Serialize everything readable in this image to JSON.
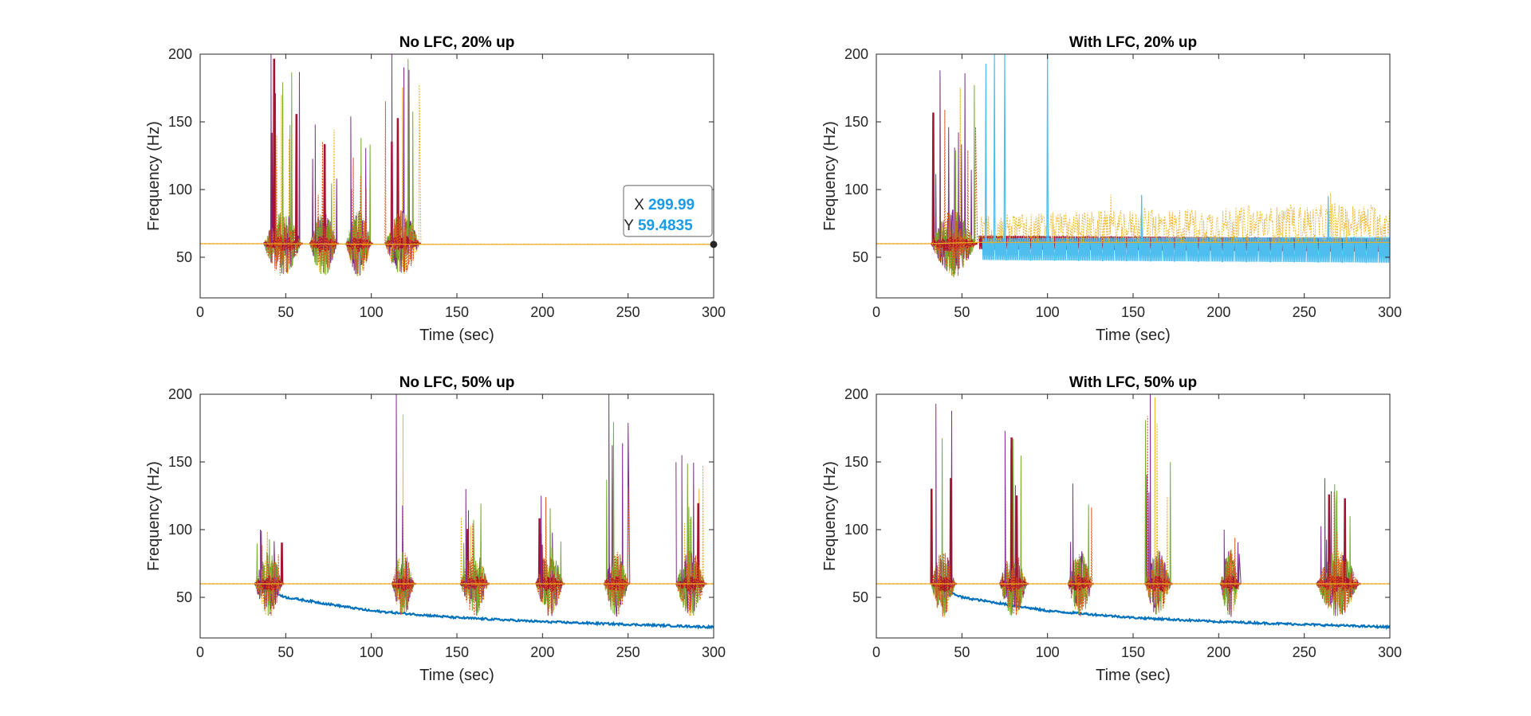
{
  "chart_data": [
    {
      "type": "line",
      "title": "No LFC, 20% up",
      "xlabel": "Time (sec)",
      "ylabel": "Frequency (Hz)",
      "xlim": [
        0,
        300
      ],
      "ylim": [
        20,
        200
      ],
      "xticks": [
        0,
        50,
        100,
        150,
        200,
        250,
        300
      ],
      "yticks": [
        50,
        100,
        150,
        200
      ],
      "grid": false,
      "series_colors": [
        "#0072BD",
        "#D95319",
        "#EDB120",
        "#7E2F8E",
        "#77AC30",
        "#4DBEEE",
        "#A2142F"
      ],
      "bursts": [
        {
          "start": 37,
          "end": 59,
          "peak": 200
        },
        {
          "start": 64,
          "end": 80,
          "peak": 148
        },
        {
          "start": 85,
          "end": 100,
          "peak": 154
        },
        {
          "start": 108,
          "end": 128,
          "peak": 200
        }
      ],
      "baseline": [
        [
          0,
          60
        ],
        [
          35,
          60
        ],
        [
          130,
          59.5
        ],
        [
          300,
          59.48
        ]
      ],
      "datatip": {
        "x_label": "X",
        "x_value": "299.99",
        "y_label": "Y",
        "y_value": "59.4835",
        "x": 299.99,
        "y": 59.4835
      }
    },
    {
      "type": "line",
      "title": "With LFC, 20% up",
      "xlabel": "Time (sec)",
      "ylabel": "Frequency (Hz)",
      "xlim": [
        0,
        300
      ],
      "ylim": [
        20,
        200
      ],
      "xticks": [
        0,
        50,
        100,
        150,
        200,
        250,
        300
      ],
      "yticks": [
        50,
        100,
        150,
        200
      ],
      "grid": false,
      "series_colors": [
        "#0072BD",
        "#D95319",
        "#EDB120",
        "#7E2F8E",
        "#77AC30",
        "#4DBEEE",
        "#A2142F"
      ],
      "bursts": [
        {
          "start": 32,
          "end": 58,
          "peak": 188
        }
      ],
      "spikes": [
        [
          64,
          193
        ],
        [
          69,
          200
        ],
        [
          75,
          200
        ],
        [
          100,
          200
        ],
        [
          155,
          96
        ],
        [
          264,
          95
        ]
      ],
      "bands": [
        {
          "series": "red",
          "x": [
            60,
            300
          ],
          "upper": [
            66,
            64
          ],
          "lower": [
            56,
            54
          ]
        },
        {
          "series": "cyan",
          "x": [
            62,
            300
          ],
          "upper": [
            64,
            65
          ],
          "lower": [
            48,
            46
          ]
        },
        {
          "series": "orange-dotted",
          "x": [
            60,
            300
          ],
          "upper": [
            82,
            90
          ],
          "lower": [
            60,
            60
          ]
        }
      ],
      "baseline": [
        [
          0,
          60
        ],
        [
          30,
          60
        ],
        [
          60,
          61
        ],
        [
          300,
          61
        ]
      ]
    },
    {
      "type": "line",
      "title": "No LFC, 50% up",
      "xlabel": "Time (sec)",
      "ylabel": "Frequency (Hz)",
      "xlim": [
        0,
        300
      ],
      "ylim": [
        20,
        200
      ],
      "xticks": [
        0,
        50,
        100,
        150,
        200,
        250,
        300
      ],
      "yticks": [
        50,
        100,
        150,
        200
      ],
      "grid": false,
      "series_colors": [
        "#0072BD",
        "#D95319",
        "#EDB120",
        "#7E2F8E",
        "#77AC30",
        "#4DBEEE",
        "#A2142F"
      ],
      "bursts": [
        {
          "start": 32,
          "end": 48,
          "peak": 100
        },
        {
          "start": 112,
          "end": 125,
          "peak": 200
        },
        {
          "start": 152,
          "end": 168,
          "peak": 130
        },
        {
          "start": 196,
          "end": 212,
          "peak": 125
        },
        {
          "start": 236,
          "end": 250,
          "peak": 200
        },
        {
          "start": 278,
          "end": 295,
          "peak": 155
        }
      ],
      "decay": [
        [
          32,
          60
        ],
        [
          50,
          50
        ],
        [
          100,
          40
        ],
        [
          150,
          35
        ],
        [
          200,
          32
        ],
        [
          250,
          30
        ],
        [
          300,
          28
        ]
      ],
      "baseline": [
        [
          0,
          60
        ],
        [
          32,
          60
        ],
        [
          300,
          60
        ]
      ]
    },
    {
      "type": "line",
      "title": "With LFC, 50% up",
      "xlabel": "Time (sec)",
      "ylabel": "Frequency (Hz)",
      "xlim": [
        0,
        300
      ],
      "ylim": [
        20,
        200
      ],
      "xticks": [
        0,
        50,
        100,
        150,
        200,
        250,
        300
      ],
      "yticks": [
        50,
        100,
        150,
        200
      ],
      "grid": false,
      "series_colors": [
        "#0072BD",
        "#D95319",
        "#EDB120",
        "#7E2F8E",
        "#77AC30",
        "#4DBEEE",
        "#A2142F"
      ],
      "bursts": [
        {
          "start": 32,
          "end": 46,
          "peak": 193
        },
        {
          "start": 72,
          "end": 88,
          "peak": 173
        },
        {
          "start": 112,
          "end": 126,
          "peak": 134
        },
        {
          "start": 157,
          "end": 172,
          "peak": 200
        },
        {
          "start": 201,
          "end": 212,
          "peak": 100
        },
        {
          "start": 257,
          "end": 282,
          "peak": 138
        }
      ],
      "decay": [
        [
          32,
          60
        ],
        [
          50,
          50
        ],
        [
          100,
          40
        ],
        [
          150,
          35
        ],
        [
          200,
          32
        ],
        [
          250,
          30
        ],
        [
          300,
          28
        ]
      ],
      "baseline": [
        [
          0,
          60
        ],
        [
          32,
          60
        ],
        [
          300,
          60
        ]
      ]
    }
  ]
}
